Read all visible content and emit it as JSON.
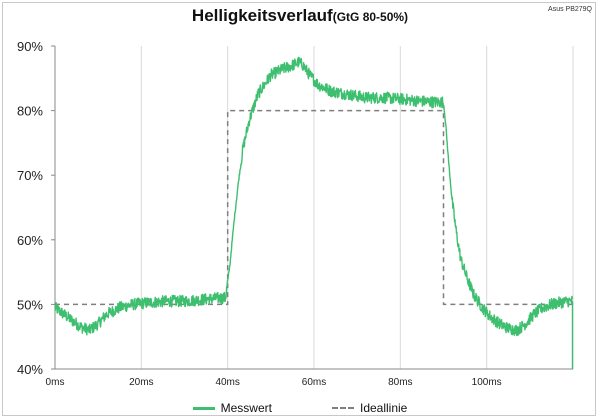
{
  "chart_data": {
    "type": "line",
    "title": "Helligkeitsverlauf",
    "subtitle": "(GtG 80-50%)",
    "corner_label": "Asus PB279Q",
    "xlabel": "",
    "ylabel": "",
    "x_unit": "ms",
    "y_unit": "%",
    "xlim": [
      0,
      120
    ],
    "ylim": [
      40,
      90
    ],
    "x_ticks": [
      "0ms",
      "20ms",
      "40ms",
      "60ms",
      "80ms",
      "100ms"
    ],
    "y_ticks": [
      "40%",
      "50%",
      "60%",
      "70%",
      "80%",
      "90%"
    ],
    "grid": "vertical",
    "legend": "bottom",
    "colors": {
      "measured": "#3dbf6f",
      "ideal": "#7f7f7f"
    },
    "series": [
      {
        "name": "Messwert",
        "style": "solid-noisy",
        "x": [
          0,
          2,
          4,
          6,
          8,
          10,
          12,
          15,
          18,
          22,
          26,
          30,
          35,
          38,
          39.5,
          40.5,
          41.5,
          42.5,
          43.5,
          45,
          47,
          50,
          53,
          55,
          56.5,
          57.5,
          59,
          61,
          64,
          68,
          72,
          76,
          80,
          84,
          88,
          90,
          90.5,
          91.2,
          92,
          93,
          94,
          95.5,
          97,
          99,
          101,
          103,
          105,
          107,
          109,
          111,
          113,
          115,
          117,
          119,
          120
        ],
        "y": [
          49.5,
          48.5,
          47.5,
          46.5,
          46.0,
          47.0,
          48.5,
          49.5,
          50.0,
          50.3,
          50.5,
          50.5,
          50.8,
          51.0,
          51.0,
          56,
          63,
          69,
          74,
          78.5,
          82.5,
          85.5,
          86.5,
          87.0,
          87.5,
          87.0,
          85.5,
          84.0,
          83.0,
          82.5,
          82.0,
          82.0,
          81.8,
          81.5,
          81.3,
          81.3,
          78,
          72,
          66,
          61,
          57,
          54,
          51.5,
          49.5,
          48.0,
          47.0,
          46.3,
          46.0,
          47.0,
          48.5,
          49.5,
          50.0,
          50.3,
          50.5,
          50.5
        ]
      },
      {
        "name": "Ideallinie",
        "style": "dashed",
        "x": [
          0,
          40,
          40,
          90,
          90,
          120
        ],
        "y": [
          50,
          50,
          80,
          80,
          50,
          50
        ]
      }
    ]
  }
}
